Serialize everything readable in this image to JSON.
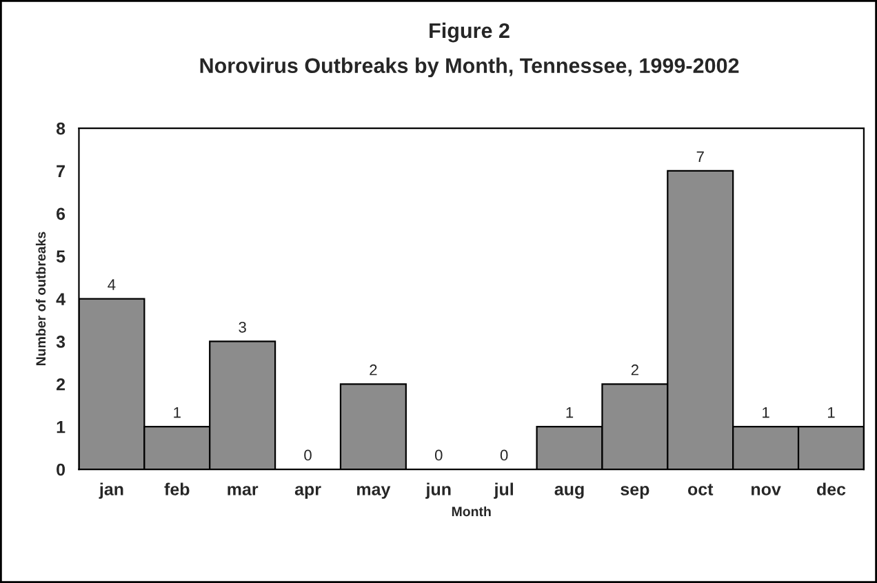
{
  "chart_data": {
    "type": "bar",
    "title": "Figure 2",
    "subtitle": "Norovirus Outbreaks by Month, Tennessee, 1999-2002",
    "xlabel": "Month",
    "ylabel": "Number of outbreaks",
    "categories": [
      "jan",
      "feb",
      "mar",
      "apr",
      "may",
      "jun",
      "jul",
      "aug",
      "sep",
      "oct",
      "nov",
      "dec"
    ],
    "values": [
      4,
      1,
      3,
      0,
      2,
      0,
      0,
      1,
      2,
      7,
      1,
      1
    ],
    "color": "#8c8c8c",
    "ylim": [
      0,
      8
    ],
    "yticks": [
      0,
      1,
      2,
      3,
      4,
      5,
      6,
      7,
      8
    ],
    "grid": false,
    "data_labels": true
  }
}
